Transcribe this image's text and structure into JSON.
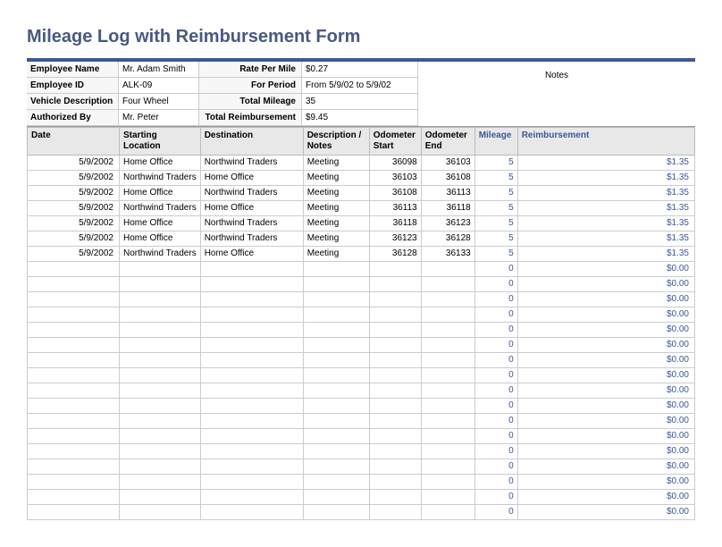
{
  "title": "Mileage Log with Reimbursement Form",
  "header": {
    "employee_name_lbl": "Employee Name",
    "employee_name": "Mr. Adam Smith",
    "rate_per_mile_lbl": "Rate Per Mile",
    "rate_per_mile": "$0.27",
    "employee_id_lbl": "Employee ID",
    "employee_id": "ALK-09",
    "for_period_lbl": "For Period",
    "for_period": "From 5/9/02 to 5/9/02",
    "vehicle_desc_lbl": "Vehicle Description",
    "vehicle_desc": "Four Wheel",
    "total_mileage_lbl": "Total Mileage",
    "total_mileage": "35",
    "authorized_by_lbl": "Authorized By",
    "authorized_by": "Mr. Peter",
    "total_reimb_lbl": "Total Reimbursement",
    "total_reimb": "$9.45",
    "notes_lbl": "Notes"
  },
  "columns": {
    "date": "Date",
    "start": "Starting Location",
    "dest": "Destination",
    "desc": "Description / Notes",
    "odstart": "Odometer Start",
    "odend": "Odometer End",
    "mileage": "Mileage",
    "reimb": "Reimbursement"
  },
  "rows": [
    {
      "date": "5/9/2002",
      "start": "Home Office",
      "dest": "Northwind Traders",
      "desc": "Meeting",
      "odstart": "36098",
      "odend": "36103",
      "mileage": "5",
      "reimb": "$1.35"
    },
    {
      "date": "5/9/2002",
      "start": "Northwind Traders",
      "dest": "Home Office",
      "desc": "Meeting",
      "odstart": "36103",
      "odend": "36108",
      "mileage": "5",
      "reimb": "$1.35"
    },
    {
      "date": "5/9/2002",
      "start": "Home Office",
      "dest": "Northwind Traders",
      "desc": "Meeting",
      "odstart": "36108",
      "odend": "36113",
      "mileage": "5",
      "reimb": "$1.35"
    },
    {
      "date": "5/9/2002",
      "start": "Northwind Traders",
      "dest": "Home Office",
      "desc": "Meeting",
      "odstart": "36113",
      "odend": "36118",
      "mileage": "5",
      "reimb": "$1.35"
    },
    {
      "date": "5/9/2002",
      "start": "Home Office",
      "dest": "Northwind Traders",
      "desc": "Meeting",
      "odstart": "36118",
      "odend": "36123",
      "mileage": "5",
      "reimb": "$1.35"
    },
    {
      "date": "5/9/2002",
      "start": "Home Office",
      "dest": "Northwind Traders",
      "desc": "Meeting",
      "odstart": "36123",
      "odend": "36128",
      "mileage": "5",
      "reimb": "$1.35"
    },
    {
      "date": "5/9/2002",
      "start": "Northwind Traders",
      "dest": "Home Office",
      "desc": "Meeting",
      "odstart": "36128",
      "odend": "36133",
      "mileage": "5",
      "reimb": "$1.35"
    }
  ],
  "empty_row_count": 17,
  "empty_mileage": "0",
  "empty_reimb": "$0.00",
  "colors": {
    "title": "#495982",
    "accent": "#3b5898",
    "header_bg": "#e8e8e8",
    "border": "#cccccc"
  }
}
